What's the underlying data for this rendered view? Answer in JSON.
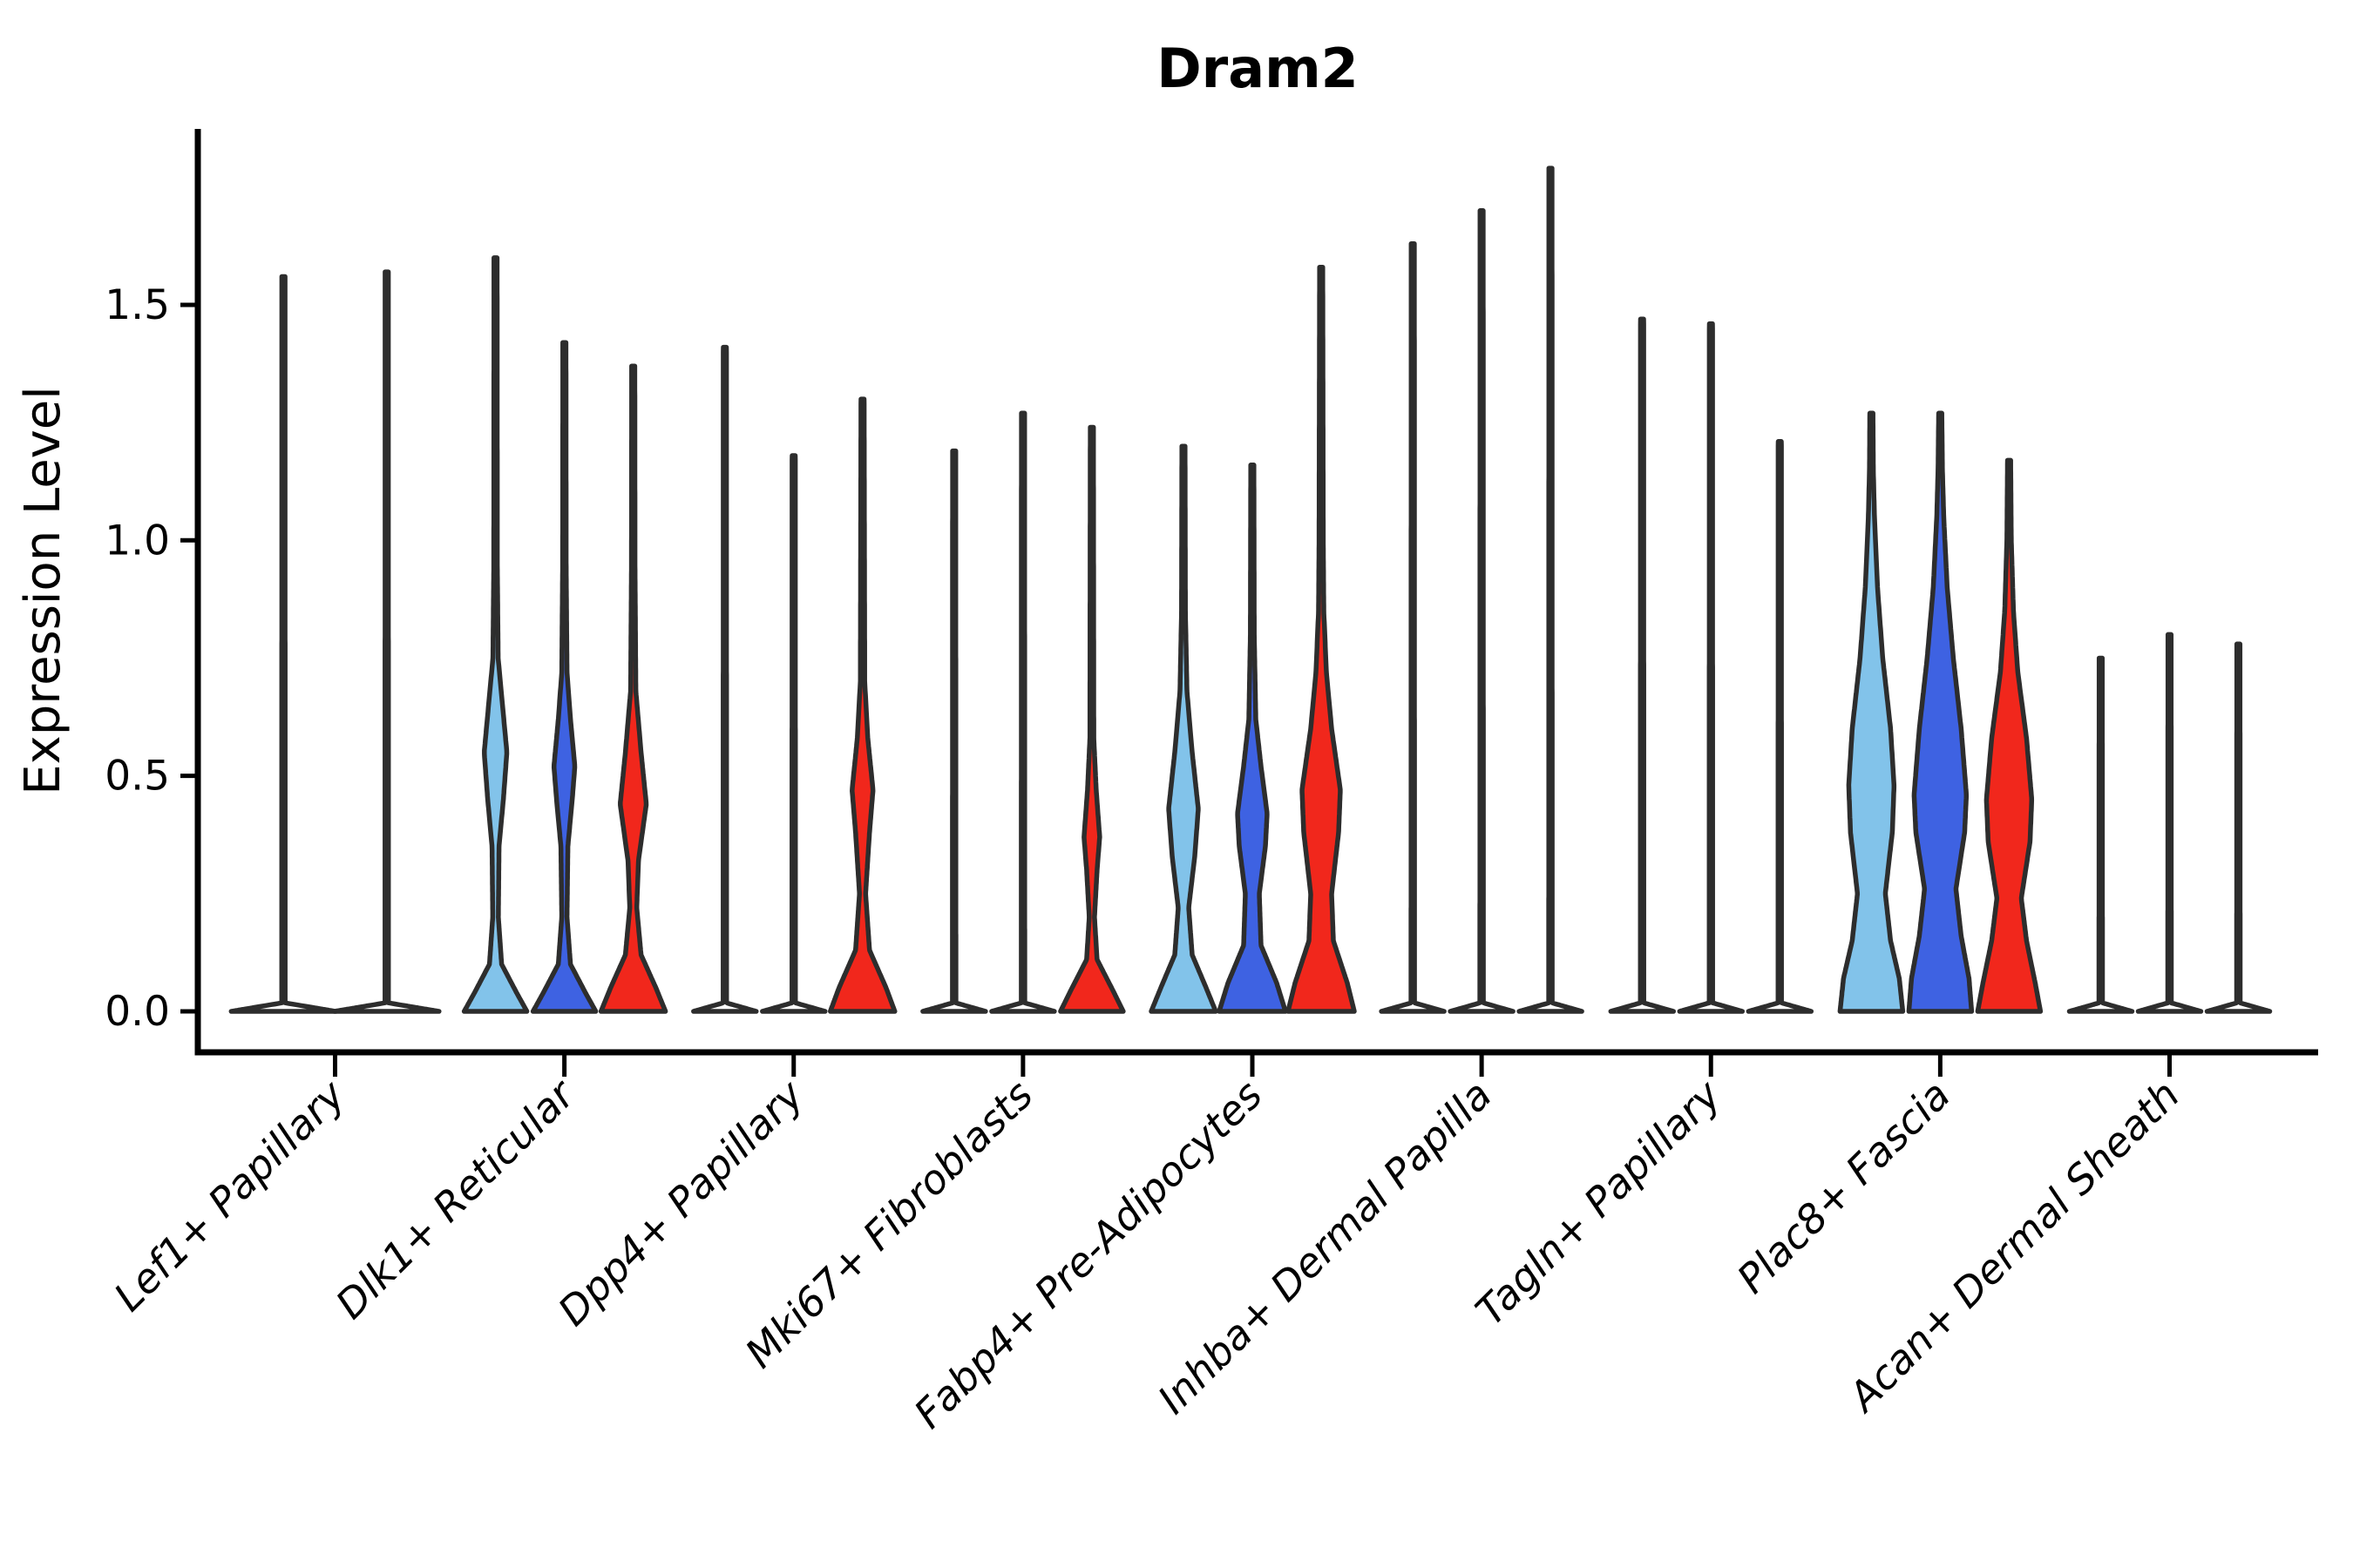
{
  "chart_data": {
    "type": "violin",
    "title": "Dram2",
    "ylabel": "Expression Level",
    "xlabel": "",
    "ytick_labels": [
      "0.0",
      "0.5",
      "1.0",
      "1.5"
    ],
    "ytick_values": [
      0.0,
      0.5,
      1.0,
      1.5
    ],
    "ylim": [
      -0.087,
      1.873
    ],
    "grid": false,
    "legend": "none",
    "background": "#ffffff",
    "outline_color": "#2d2d2d",
    "axis_color": "#000000",
    "series_colors": [
      "#82C3EA",
      "#3E62E2",
      "#F1271C"
    ],
    "categories": [
      "Lef1+ Papillary",
      "Dlk1+ Reticular",
      "Dpp4+ Papillary",
      "Mki67+ Fibroblasts",
      "Fabp4+ Pre-Adipocytes",
      "Inhba+ Dermal Papilla",
      "Tagln+ Papillary",
      "Plac8+ Fascia",
      "Acan+ Dermal Sheath"
    ],
    "groups": [
      {
        "category": "Lef1+ Papillary",
        "violins": [
          {
            "series": 0,
            "offset": -0.75,
            "max": 1.56,
            "filled": false,
            "profile": [
              [
                0,
                60
              ],
              [
                0.018,
                2
              ],
              [
                1.56,
                1.8
              ]
            ]
          },
          {
            "series": 1,
            "offset": 0.75,
            "max": 1.57,
            "filled": false,
            "profile": [
              [
                0,
                60
              ],
              [
                0.018,
                2
              ],
              [
                1.57,
                1.8
              ]
            ]
          }
        ]
      },
      {
        "category": "Dlk1+ Reticular",
        "violins": [
          {
            "series": 0,
            "offset": -1,
            "max": 1.6,
            "filled": true,
            "profile": [
              [
                0,
                36
              ],
              [
                0.04,
                24
              ],
              [
                0.1,
                7
              ],
              [
                0.2,
                3.2
              ],
              [
                0.35,
                4
              ],
              [
                0.45,
                9
              ],
              [
                0.55,
                13
              ],
              [
                0.65,
                8
              ],
              [
                0.75,
                3
              ],
              [
                0.95,
                2
              ],
              [
                1.6,
                1.8
              ]
            ]
          },
          {
            "series": 1,
            "offset": 0,
            "max": 1.42,
            "filled": true,
            "profile": [
              [
                0,
                36
              ],
              [
                0.04,
                24
              ],
              [
                0.1,
                7
              ],
              [
                0.2,
                3
              ],
              [
                0.35,
                4
              ],
              [
                0.45,
                9
              ],
              [
                0.52,
                12
              ],
              [
                0.62,
                7
              ],
              [
                0.72,
                3
              ],
              [
                0.95,
                2
              ],
              [
                1.42,
                1.8
              ]
            ]
          },
          {
            "series": 2,
            "offset": 1,
            "max": 1.37,
            "filled": true,
            "profile": [
              [
                0,
                37
              ],
              [
                0.05,
                26
              ],
              [
                0.12,
                9
              ],
              [
                0.22,
                4
              ],
              [
                0.32,
                6
              ],
              [
                0.44,
                15
              ],
              [
                0.55,
                9
              ],
              [
                0.68,
                3
              ],
              [
                0.95,
                2
              ],
              [
                1.37,
                1.8
              ]
            ]
          }
        ]
      },
      {
        "category": "Dpp4+ Papillary",
        "violins": [
          {
            "series": 0,
            "offset": -1,
            "max": 1.41,
            "filled": false,
            "profile": [
              [
                0,
                36
              ],
              [
                0.018,
                2
              ],
              [
                1.41,
                1.8
              ]
            ]
          },
          {
            "series": 1,
            "offset": 0,
            "max": 1.18,
            "filled": false,
            "profile": [
              [
                0,
                36
              ],
              [
                0.018,
                2
              ],
              [
                1.18,
                1.8
              ]
            ]
          },
          {
            "series": 2,
            "offset": 1,
            "max": 1.3,
            "filled": true,
            "profile": [
              [
                0,
                37
              ],
              [
                0.05,
                27
              ],
              [
                0.13,
                8
              ],
              [
                0.25,
                3.5
              ],
              [
                0.38,
                8
              ],
              [
                0.47,
                12
              ],
              [
                0.58,
                6
              ],
              [
                0.7,
                2.5
              ],
              [
                1.3,
                1.8
              ]
            ]
          }
        ]
      },
      {
        "category": "Mki67+ Fibroblasts",
        "violins": [
          {
            "series": 0,
            "offset": -1,
            "max": 1.19,
            "filled": false,
            "profile": [
              [
                0,
                36
              ],
              [
                0.018,
                2
              ],
              [
                1.19,
                1.8
              ]
            ]
          },
          {
            "series": 1,
            "offset": 0,
            "max": 1.27,
            "filled": false,
            "profile": [
              [
                0,
                36
              ],
              [
                0.018,
                2
              ],
              [
                1.27,
                1.8
              ]
            ]
          },
          {
            "series": 2,
            "offset": 1,
            "max": 1.24,
            "filled": true,
            "profile": [
              [
                0,
                36
              ],
              [
                0.045,
                24
              ],
              [
                0.11,
                6
              ],
              [
                0.2,
                3
              ],
              [
                0.3,
                6
              ],
              [
                0.37,
                9
              ],
              [
                0.47,
                5
              ],
              [
                0.58,
                2.2
              ],
              [
                1.24,
                1.8
              ]
            ]
          }
        ]
      },
      {
        "category": "Fabp4+ Pre-Adipocytes",
        "violins": [
          {
            "series": 0,
            "offset": -1,
            "max": 1.2,
            "filled": true,
            "profile": [
              [
                0,
                37
              ],
              [
                0.05,
                26
              ],
              [
                0.12,
                10
              ],
              [
                0.22,
                6
              ],
              [
                0.33,
                13
              ],
              [
                0.43,
                17
              ],
              [
                0.55,
                10
              ],
              [
                0.68,
                4
              ],
              [
                0.85,
                2.2
              ],
              [
                1.2,
                1.8
              ]
            ]
          },
          {
            "series": 1,
            "offset": 0,
            "max": 1.16,
            "filled": true,
            "profile": [
              [
                0,
                38
              ],
              [
                0.06,
                28
              ],
              [
                0.14,
                10
              ],
              [
                0.25,
                8
              ],
              [
                0.35,
                15
              ],
              [
                0.42,
                17
              ],
              [
                0.52,
                10
              ],
              [
                0.62,
                4
              ],
              [
                0.8,
                2.2
              ],
              [
                1.16,
                1.8
              ]
            ]
          },
          {
            "series": 2,
            "offset": 1,
            "max": 1.58,
            "filled": true,
            "profile": [
              [
                0,
                38
              ],
              [
                0.06,
                30
              ],
              [
                0.15,
                14
              ],
              [
                0.25,
                12
              ],
              [
                0.38,
                20
              ],
              [
                0.47,
                22
              ],
              [
                0.6,
                12
              ],
              [
                0.72,
                6
              ],
              [
                0.85,
                3
              ],
              [
                1.0,
                2.4
              ],
              [
                1.58,
                1.8
              ]
            ]
          }
        ]
      },
      {
        "category": "Inhba+ Dermal Papilla",
        "violins": [
          {
            "series": 0,
            "offset": -1,
            "max": 1.63,
            "filled": false,
            "profile": [
              [
                0,
                36
              ],
              [
                0.018,
                2
              ],
              [
                1.63,
                1.8
              ]
            ]
          },
          {
            "series": 1,
            "offset": 0,
            "max": 1.7,
            "filled": false,
            "profile": [
              [
                0,
                36
              ],
              [
                0.018,
                2
              ],
              [
                1.7,
                1.8
              ]
            ]
          },
          {
            "series": 2,
            "offset": 1,
            "max": 1.79,
            "filled": false,
            "profile": [
              [
                0,
                36
              ],
              [
                0.018,
                2
              ],
              [
                1.79,
                1.8
              ]
            ]
          }
        ]
      },
      {
        "category": "Tagln+ Papillary",
        "violins": [
          {
            "series": 0,
            "offset": -1,
            "max": 1.47,
            "filled": false,
            "profile": [
              [
                0,
                36
              ],
              [
                0.018,
                2
              ],
              [
                1.47,
                1.8
              ]
            ]
          },
          {
            "series": 1,
            "offset": 0,
            "max": 1.46,
            "filled": false,
            "profile": [
              [
                0,
                36
              ],
              [
                0.018,
                2
              ],
              [
                1.46,
                1.8
              ]
            ]
          },
          {
            "series": 2,
            "offset": 1,
            "max": 1.21,
            "filled": false,
            "profile": [
              [
                0,
                36
              ],
              [
                0.018,
                2
              ],
              [
                1.21,
                1.8
              ]
            ]
          }
        ]
      },
      {
        "category": "Plac8+ Fascia",
        "violins": [
          {
            "series": 0,
            "offset": -1,
            "max": 1.27,
            "filled": true,
            "profile": [
              [
                0,
                36
              ],
              [
                0.07,
                32
              ],
              [
                0.15,
                22
              ],
              [
                0.25,
                16
              ],
              [
                0.38,
                24
              ],
              [
                0.48,
                26
              ],
              [
                0.6,
                22
              ],
              [
                0.75,
                13
              ],
              [
                0.9,
                7
              ],
              [
                1.05,
                3.5
              ],
              [
                1.15,
                2.2
              ],
              [
                1.27,
                1.8
              ]
            ]
          },
          {
            "series": 1,
            "offset": 0,
            "max": 1.27,
            "filled": true,
            "profile": [
              [
                0,
                36
              ],
              [
                0.07,
                33
              ],
              [
                0.16,
                24
              ],
              [
                0.26,
                18
              ],
              [
                0.38,
                28
              ],
              [
                0.46,
                30
              ],
              [
                0.6,
                24
              ],
              [
                0.75,
                15
              ],
              [
                0.9,
                8
              ],
              [
                1.05,
                4
              ],
              [
                1.15,
                2.5
              ],
              [
                1.27,
                1.8
              ]
            ]
          },
          {
            "series": 2,
            "offset": 1,
            "max": 1.17,
            "filled": true,
            "profile": [
              [
                0,
                36
              ],
              [
                0.06,
                30
              ],
              [
                0.15,
                20
              ],
              [
                0.24,
                14
              ],
              [
                0.36,
                24
              ],
              [
                0.45,
                26
              ],
              [
                0.58,
                20
              ],
              [
                0.72,
                10
              ],
              [
                0.85,
                5
              ],
              [
                1.0,
                2.5
              ],
              [
                1.17,
                1.8
              ]
            ]
          }
        ]
      },
      {
        "category": "Acan+ Dermal Sheath",
        "violins": [
          {
            "series": 0,
            "offset": -1,
            "max": 0.75,
            "filled": false,
            "profile": [
              [
                0,
                36
              ],
              [
                0.018,
                2
              ],
              [
                0.75,
                1.8
              ]
            ]
          },
          {
            "series": 1,
            "offset": 0,
            "max": 0.8,
            "filled": false,
            "profile": [
              [
                0,
                36
              ],
              [
                0.018,
                2
              ],
              [
                0.8,
                1.8
              ]
            ]
          },
          {
            "series": 2,
            "offset": 1,
            "max": 0.78,
            "filled": false,
            "profile": [
              [
                0,
                36
              ],
              [
                0.018,
                2
              ],
              [
                0.78,
                1.8
              ]
            ]
          }
        ]
      }
    ]
  }
}
